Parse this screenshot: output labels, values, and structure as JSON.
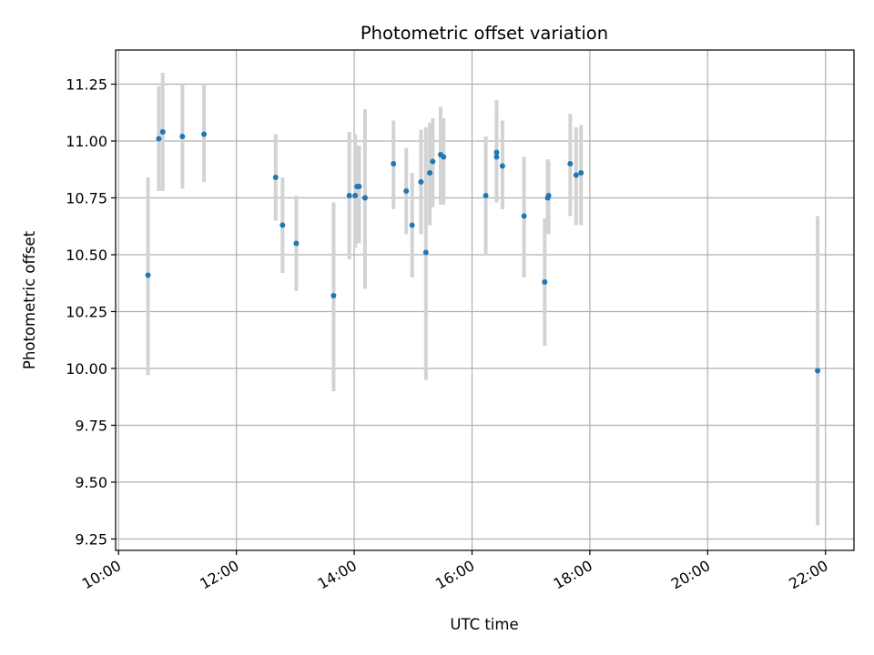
{
  "chart_data": {
    "type": "scatter",
    "title": "Photometric offset variation",
    "xlabel": "UTC time",
    "ylabel": "Photometric offset",
    "x_ticks": [
      "10:00",
      "12:00",
      "14:00",
      "16:00",
      "18:00",
      "20:00",
      "22:00"
    ],
    "y_ticks": [
      "9.25",
      "9.50",
      "9.75",
      "10.00",
      "10.25",
      "10.50",
      "10.75",
      "11.00",
      "11.25"
    ],
    "xlim": [
      "09:57",
      "22:29"
    ],
    "ylim": [
      9.2,
      11.4
    ],
    "grid": true,
    "colors": {
      "point": "#1f77b4",
      "errorbar": "#d3d3d3",
      "grid": "#b0b0b0"
    },
    "series": [
      {
        "points": [
          {
            "x": "10:30",
            "y": 10.41,
            "ylow": 9.97,
            "yhigh": 10.84
          },
          {
            "x": "10:41",
            "y": 11.01,
            "ylow": 10.78,
            "yhigh": 11.24
          },
          {
            "x": "10:45",
            "y": 11.04,
            "ylow": 10.78,
            "yhigh": 11.3
          },
          {
            "x": "11:05",
            "y": 11.02,
            "ylow": 10.79,
            "yhigh": 11.25
          },
          {
            "x": "11:27",
            "y": 11.03,
            "ylow": 10.82,
            "yhigh": 11.25
          },
          {
            "x": "12:40",
            "y": 10.84,
            "ylow": 10.65,
            "yhigh": 11.03
          },
          {
            "x": "12:47",
            "y": 10.63,
            "ylow": 10.42,
            "yhigh": 10.84
          },
          {
            "x": "13:01",
            "y": 10.55,
            "ylow": 10.34,
            "yhigh": 10.76
          },
          {
            "x": "13:39",
            "y": 10.32,
            "ylow": 9.9,
            "yhigh": 10.73
          },
          {
            "x": "13:55",
            "y": 10.76,
            "ylow": 10.48,
            "yhigh": 11.04
          },
          {
            "x": "14:01",
            "y": 10.76,
            "ylow": 10.53,
            "yhigh": 11.03
          },
          {
            "x": "14:03",
            "y": 10.8,
            "ylow": 10.55,
            "yhigh": 10.98
          },
          {
            "x": "14:05",
            "y": 10.8,
            "ylow": 10.55,
            "yhigh": 10.98
          },
          {
            "x": "14:11",
            "y": 10.75,
            "ylow": 10.35,
            "yhigh": 11.14
          },
          {
            "x": "14:40",
            "y": 10.9,
            "ylow": 10.7,
            "yhigh": 11.09
          },
          {
            "x": "14:53",
            "y": 10.78,
            "ylow": 10.59,
            "yhigh": 10.97
          },
          {
            "x": "14:59",
            "y": 10.63,
            "ylow": 10.4,
            "yhigh": 10.86
          },
          {
            "x": "15:08",
            "y": 10.82,
            "ylow": 10.59,
            "yhigh": 11.05
          },
          {
            "x": "15:13",
            "y": 10.51,
            "ylow": 9.95,
            "yhigh": 11.06
          },
          {
            "x": "15:17",
            "y": 10.86,
            "ylow": 10.63,
            "yhigh": 11.08
          },
          {
            "x": "15:20",
            "y": 10.91,
            "ylow": 10.71,
            "yhigh": 11.1
          },
          {
            "x": "15:28",
            "y": 10.94,
            "ylow": 10.72,
            "yhigh": 11.15
          },
          {
            "x": "15:31",
            "y": 10.93,
            "ylow": 10.72,
            "yhigh": 11.1
          },
          {
            "x": "16:14",
            "y": 10.76,
            "ylow": 10.5,
            "yhigh": 11.02
          },
          {
            "x": "16:25",
            "y": 10.95,
            "ylow": 10.73,
            "yhigh": 11.18
          },
          {
            "x": "16:25",
            "y": 10.93,
            "ylow": 10.73,
            "yhigh": 11.13
          },
          {
            "x": "16:31",
            "y": 10.89,
            "ylow": 10.7,
            "yhigh": 11.09
          },
          {
            "x": "16:53",
            "y": 10.67,
            "ylow": 10.4,
            "yhigh": 10.93
          },
          {
            "x": "17:14",
            "y": 10.38,
            "ylow": 10.1,
            "yhigh": 10.66
          },
          {
            "x": "17:17",
            "y": 10.75,
            "ylow": 10.6,
            "yhigh": 10.92
          },
          {
            "x": "17:18",
            "y": 10.76,
            "ylow": 10.59,
            "yhigh": 10.91
          },
          {
            "x": "17:40",
            "y": 10.9,
            "ylow": 10.67,
            "yhigh": 11.12
          },
          {
            "x": "17:46",
            "y": 10.85,
            "ylow": 10.63,
            "yhigh": 11.06
          },
          {
            "x": "17:51",
            "y": 10.86,
            "ylow": 10.63,
            "yhigh": 11.07
          },
          {
            "x": "21:52",
            "y": 9.99,
            "ylow": 9.31,
            "yhigh": 10.67
          }
        ]
      }
    ]
  }
}
